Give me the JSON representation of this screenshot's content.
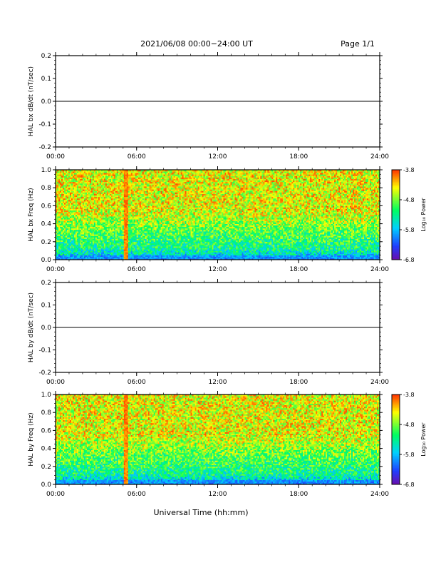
{
  "header": {
    "title": "2021/06/08  00:00−24:00 UT",
    "page": "Page 1/1"
  },
  "footer": {
    "xlabel": "Universal Time (hh:mm)"
  },
  "colorbar": {
    "label": "Log₁₀ Power",
    "ticks": [
      "-3.8",
      "-4.8",
      "-5.8",
      "-6.8"
    ],
    "range": [
      -6.8,
      -3.8
    ],
    "colormap": [
      "#6a0dad",
      "#1f3fff",
      "#00d0ff",
      "#00ff60",
      "#ffff00",
      "#ff3000"
    ]
  },
  "chart_data": [
    {
      "type": "line",
      "ylabel": "HAL bx dB/dt (nT/sec)",
      "ylim": [
        -0.2,
        0.2
      ],
      "yticks": [
        "0.2",
        "0.1",
        "0.0",
        "-0.1",
        "-0.2"
      ],
      "xticks": [
        "00:00",
        "06:00",
        "12:00",
        "18:00",
        "24:00"
      ],
      "x": [
        0,
        24
      ],
      "y": [
        0.0,
        0.0
      ]
    },
    {
      "type": "heatmap",
      "ylabel": "HAL bx Freq (Hz)",
      "ylim": [
        0,
        1.0
      ],
      "yticks": [
        "1.0",
        "0.8",
        "0.6",
        "0.4",
        "0.2",
        "0.0"
      ],
      "xticks": [
        "00:00",
        "06:00",
        "12:00",
        "18:00",
        "24:00"
      ],
      "xlim": [
        0,
        24
      ],
      "spike_hour": 5.2
    },
    {
      "type": "line",
      "ylabel": "HAL by dB/dt (nT/sec)",
      "ylim": [
        -0.2,
        0.2
      ],
      "yticks": [
        "0.2",
        "0.1",
        "0.0",
        "-0.1",
        "-0.2"
      ],
      "xticks": [
        "00:00",
        "06:00",
        "12:00",
        "18:00",
        "24:00"
      ],
      "x": [
        0,
        24
      ],
      "y": [
        0.0,
        0.0
      ]
    },
    {
      "type": "heatmap",
      "ylabel": "HAL by Freq (Hz)",
      "ylim": [
        0,
        1.0
      ],
      "yticks": [
        "1.0",
        "0.8",
        "0.6",
        "0.4",
        "0.2",
        "0.0"
      ],
      "xticks": [
        "00:00",
        "06:00",
        "12:00",
        "18:00",
        "24:00"
      ],
      "xlim": [
        0,
        24
      ],
      "spike_hour": 5.2
    }
  ]
}
